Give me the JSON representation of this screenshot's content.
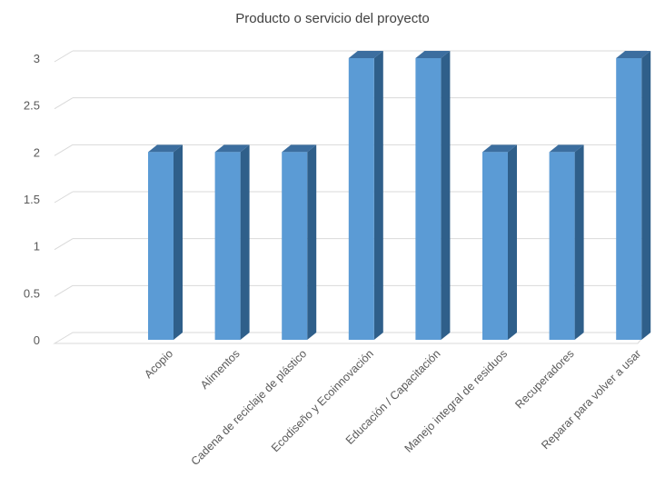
{
  "chart_data": {
    "type": "bar",
    "style": "3d-column",
    "title": "Producto o servicio del proyecto",
    "xlabel": "",
    "ylabel": "",
    "categories": [
      "Acopio",
      "Alimentos",
      "Cadena de reciclaje de plástico",
      "Ecodiseño y Ecoinnovación",
      "Educación / Capacitación",
      "Manejo integral de residuos",
      "Recuperadores",
      "Reparar para volver a usar"
    ],
    "values": [
      2,
      2,
      2,
      3,
      3,
      2,
      2,
      3
    ],
    "ylim": [
      0,
      3
    ],
    "yticks": [
      "0",
      "0.5",
      "1",
      "1.5",
      "2",
      "2.5",
      "3"
    ],
    "grid": true,
    "legend": "none"
  },
  "colors": {
    "bar_front": "#5B9BD5",
    "bar_side": "#2F5F8A",
    "bar_top": "#3C6E9F",
    "gridline": "#D9D9D9",
    "floor": "#D9D9D9",
    "tick_text": "#595959",
    "title_text": "#404040"
  }
}
